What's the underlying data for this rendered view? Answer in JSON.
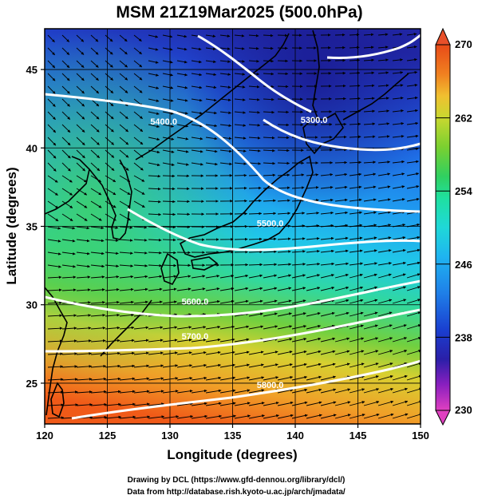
{
  "figure": {
    "title": "MSM 21Z19Mar2025 (500.0hPa)",
    "xlabel": "Longitude (degrees)",
    "ylabel": "Latitude  (degrees)",
    "credits": [
      "Drawing by DCL (https://www.gfd-dennou.org/library/dcl/)",
      "Data from http://database.rish.kyoto-u.ac.jp/arch/jmadata/"
    ]
  },
  "axes": {
    "x_range": [
      120,
      150
    ],
    "y_range": [
      22.4,
      47.6
    ],
    "x_ticks": [
      120,
      125,
      130,
      135,
      140,
      145,
      150
    ],
    "y_ticks": [
      25,
      30,
      35,
      40,
      45
    ],
    "grid": true
  },
  "colorbar": {
    "range": [
      230,
      270
    ],
    "ticks": [
      230,
      238,
      246,
      254,
      262,
      270
    ],
    "colors": [
      "#e040c0",
      "#8a1fbf",
      "#2a1fa8",
      "#1a3fd0",
      "#1f7fe8",
      "#1fb4f0",
      "#1fd8d8",
      "#1fe0a0",
      "#30d060",
      "#7ad030",
      "#c8d830",
      "#f0c030",
      "#f08020",
      "#e84a18",
      "#e8502a"
    ]
  },
  "contours": {
    "color": "#ffffff",
    "levels": [
      {
        "label": "5300.0",
        "lon": 141.5,
        "lat": 41.6
      },
      {
        "label": "5400.0",
        "lon": 129.5,
        "lat": 41.5
      },
      {
        "label": "5500.0",
        "lon": 138.0,
        "lat": 35.0
      },
      {
        "label": "5600.0",
        "lon": 132.0,
        "lat": 30.0
      },
      {
        "label": "5700.0",
        "lon": 132.0,
        "lat": 27.8
      },
      {
        "label": "5800.0",
        "lon": 138.0,
        "lat": 24.7
      }
    ]
  }
}
